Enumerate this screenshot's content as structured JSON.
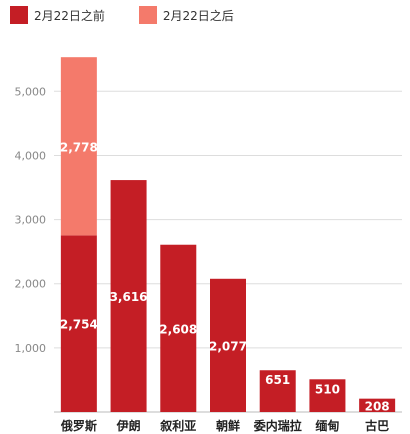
{
  "chart_data": {
    "type": "bar",
    "stacked": true,
    "categories": [
      "俄罗斯",
      "伊朗",
      "叙利亚",
      "朝鲜",
      "委内瑞拉",
      "缅甸",
      "古巴"
    ],
    "series": [
      {
        "name": "2月22日之前",
        "color": "#c41e25",
        "values": [
          2754,
          3616,
          2608,
          2077,
          651,
          510,
          208
        ]
      },
      {
        "name": "2月22日之后",
        "color": "#f47a6b",
        "values": [
          2778,
          0,
          0,
          0,
          0,
          0,
          0
        ]
      }
    ],
    "data_labels": [
      [
        "2,754",
        "3,616",
        "2,608",
        "2,077",
        "651",
        "510",
        "208"
      ],
      [
        "2,778",
        "",
        "",
        "",
        "",
        "",
        ""
      ]
    ],
    "ylim": [
      0,
      5800
    ],
    "yticks": [
      1000,
      2000,
      3000,
      4000,
      5000
    ],
    "ytick_labels": [
      "1,000",
      "2,000",
      "3,000",
      "4,000",
      "5,000"
    ],
    "grid": true,
    "legend_position": "top-left"
  }
}
